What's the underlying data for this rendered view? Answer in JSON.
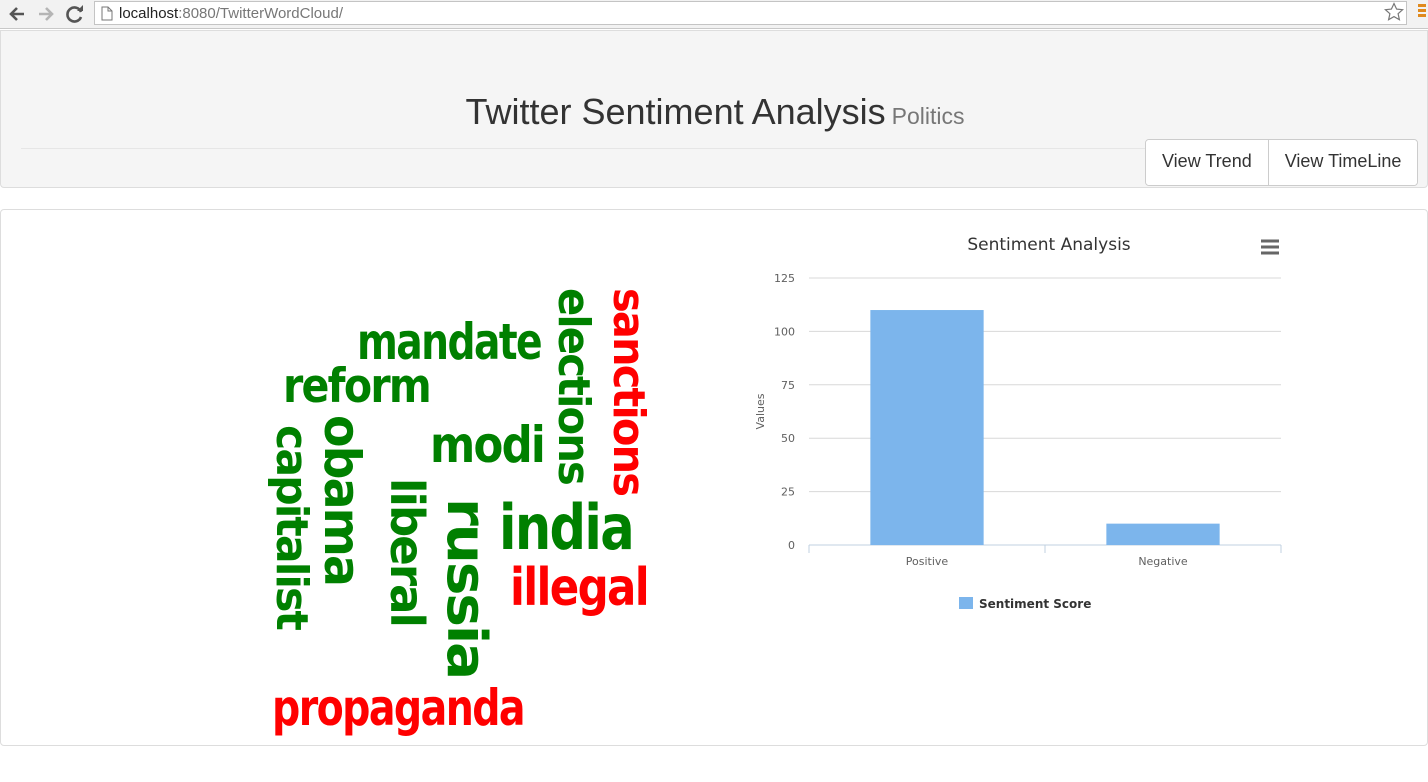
{
  "browser": {
    "url_host": "localhost",
    "url_rest": ":8080/TwitterWordCloud/",
    "back_icon": "back-arrow-icon",
    "forward_icon": "forward-arrow-icon",
    "reload_icon": "reload-icon",
    "bookmark_icon": "star-icon",
    "menu_icon": "hamburger-icon"
  },
  "header": {
    "title": "Twitter Sentiment Analysis",
    "subtitle": "Politics",
    "buttons": [
      {
        "label": "View Trend"
      },
      {
        "label": "View TimeLine"
      }
    ]
  },
  "wordcloud": {
    "colors": {
      "positive": "#008000",
      "negative": "#ff0000"
    },
    "words": [
      {
        "text": "mandate",
        "sentiment": "positive"
      },
      {
        "text": "reform",
        "sentiment": "positive"
      },
      {
        "text": "elections",
        "sentiment": "positive"
      },
      {
        "text": "sanctions",
        "sentiment": "negative"
      },
      {
        "text": "modi",
        "sentiment": "positive"
      },
      {
        "text": "obama",
        "sentiment": "positive"
      },
      {
        "text": "capitalist",
        "sentiment": "positive"
      },
      {
        "text": "liberal",
        "sentiment": "positive"
      },
      {
        "text": "russia",
        "sentiment": "positive"
      },
      {
        "text": "india",
        "sentiment": "positive"
      },
      {
        "text": "illegal",
        "sentiment": "negative"
      },
      {
        "text": "propaganda",
        "sentiment": "negative"
      }
    ]
  },
  "chart_data": {
    "type": "bar",
    "title": "Sentiment Analysis",
    "categories": [
      "Positive",
      "Negative"
    ],
    "series": [
      {
        "name": "Sentiment Score",
        "values": [
          110,
          10
        ],
        "color": "#7cb5ec"
      }
    ],
    "ylabel": "Values",
    "xlabel": "",
    "ylim": [
      0,
      125
    ],
    "yticks": [
      0,
      25,
      50,
      75,
      100,
      125
    ],
    "grid": true,
    "legend": "bottom-center",
    "menu_icon": "chart-menu-icon"
  }
}
